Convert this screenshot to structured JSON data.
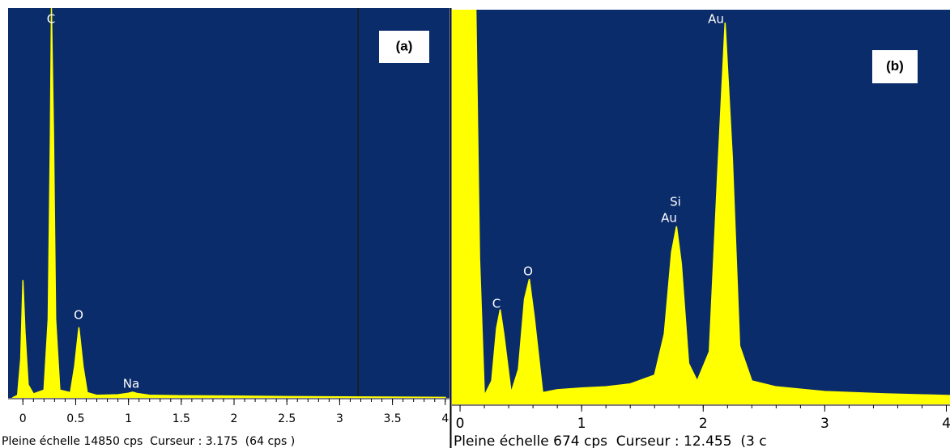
{
  "chart_data": [
    {
      "type": "area",
      "label": "(a)",
      "color": "#ffff00",
      "background": "#0b2c6b",
      "x": [
        -0.1,
        -0.05,
        -0.02,
        0.0,
        0.02,
        0.05,
        0.1,
        0.2,
        0.24,
        0.26,
        0.27,
        0.29,
        0.31,
        0.35,
        0.45,
        0.49,
        0.53,
        0.57,
        0.61,
        0.7,
        0.9,
        1.0,
        1.04,
        1.08,
        1.2,
        1.5,
        2.0,
        2.5,
        3.0,
        3.5,
        4.0
      ],
      "values": [
        0,
        100,
        1500,
        4490,
        2500,
        500,
        150,
        300,
        3000,
        10000,
        14850,
        10000,
        3000,
        300,
        200,
        1200,
        2690,
        1200,
        200,
        100,
        120,
        180,
        220,
        170,
        100,
        80,
        70,
        50,
        40,
        30,
        20
      ],
      "xlim": [
        -0.14,
        4.04
      ],
      "ylim": [
        0,
        14850
      ],
      "xticks": [
        0,
        0.5,
        1,
        1.5,
        2,
        2.5,
        3,
        3.5,
        4
      ],
      "cursor": 3.175,
      "annotations": [
        "C",
        "O",
        "Na"
      ],
      "footer": "Pleine échelle 14850 cps  Curseur : 3.175  (64 cps )"
    },
    {
      "type": "area",
      "label": "(b)",
      "color": "#ffff00",
      "background": "#0b2c6b",
      "x": [
        -0.067,
        0.13,
        0.16,
        0.2,
        0.26,
        0.3,
        0.33,
        0.36,
        0.42,
        0.48,
        0.53,
        0.57,
        0.61,
        0.68,
        0.8,
        1.0,
        1.2,
        1.4,
        1.6,
        1.68,
        1.74,
        1.78,
        1.82,
        1.88,
        1.95,
        2.05,
        2.12,
        2.18,
        2.24,
        2.3,
        2.4,
        2.6,
        3.0,
        3.5,
        4.03
      ],
      "values": [
        674,
        674,
        250,
        15,
        40,
        130,
        162,
        120,
        20,
        60,
        180,
        214,
        150,
        20,
        25,
        28,
        30,
        35,
        50,
        120,
        260,
        304,
        240,
        70,
        40,
        90,
        400,
        652,
        420,
        100,
        40,
        30,
        22,
        18,
        15
      ],
      "xlim": [
        -0.067,
        4.03
      ],
      "ylim": [
        0,
        674
      ],
      "xticks": [
        0,
        1,
        2,
        3,
        4
      ],
      "annotations": [
        "C",
        "O",
        "Si",
        "Au",
        "Au"
      ],
      "footer": "Pleine échelle 674 cps  Curseur : 12.455  (3 c"
    }
  ]
}
